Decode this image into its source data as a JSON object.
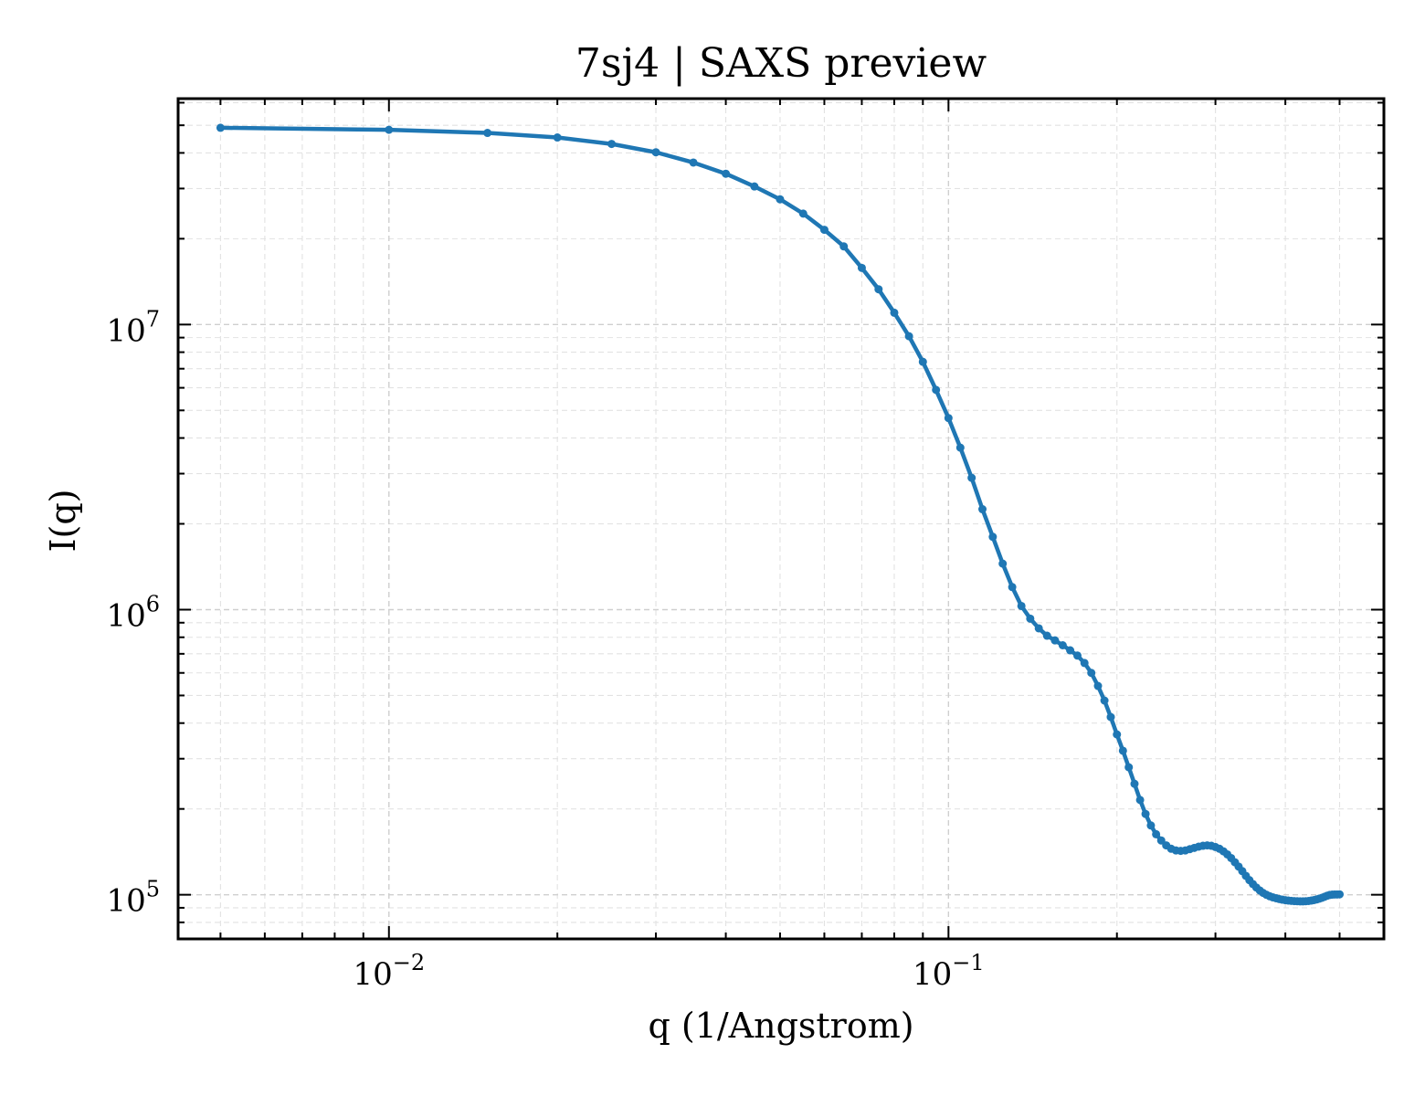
{
  "chart_data": {
    "type": "line",
    "title": "7sj4 | SAXS preview",
    "xlabel": "q (1/Angstrom)",
    "ylabel": "I(q)",
    "xscale": "log",
    "yscale": "log",
    "xlim": [
      0.0042,
      0.6
    ],
    "ylim": [
      70000,
      62000000
    ],
    "grid": true,
    "legend": "none",
    "x_ticks": [
      {
        "value": 0.01,
        "base": "10",
        "exp": "−2"
      },
      {
        "value": 0.1,
        "base": "10",
        "exp": "−1"
      }
    ],
    "y_ticks": [
      {
        "value": 100000,
        "base": "10",
        "exp": "5"
      },
      {
        "value": 1000000,
        "base": "10",
        "exp": "6"
      },
      {
        "value": 10000000,
        "base": "10",
        "exp": "7"
      }
    ],
    "series": [
      {
        "color": "#1f77b4",
        "marker": "dot",
        "x": [
          0.005,
          0.01,
          0.015,
          0.02,
          0.025,
          0.03,
          0.035,
          0.04,
          0.045,
          0.05,
          0.055,
          0.06,
          0.065,
          0.07,
          0.075,
          0.08,
          0.085,
          0.09,
          0.095,
          0.1,
          0.105,
          0.11,
          0.115,
          0.12,
          0.125,
          0.13,
          0.135,
          0.14,
          0.145,
          0.15,
          0.155,
          0.16,
          0.165,
          0.17,
          0.175,
          0.18,
          0.185,
          0.19,
          0.195,
          0.2,
          0.205,
          0.21,
          0.215,
          0.22,
          0.225,
          0.23,
          0.235,
          0.24,
          0.245,
          0.25,
          0.255,
          0.26,
          0.265,
          0.27,
          0.275,
          0.28,
          0.285,
          0.29,
          0.295,
          0.3,
          0.305,
          0.31,
          0.315,
          0.32,
          0.325,
          0.33,
          0.335,
          0.34,
          0.345,
          0.35,
          0.355,
          0.36,
          0.365,
          0.37,
          0.375,
          0.38,
          0.385,
          0.39,
          0.395,
          0.4,
          0.405,
          0.41,
          0.415,
          0.42,
          0.425,
          0.43,
          0.435,
          0.44,
          0.445,
          0.45,
          0.455,
          0.46,
          0.465,
          0.47,
          0.475,
          0.48,
          0.485,
          0.49,
          0.495,
          0.5
        ],
        "y": [
          49000000,
          48200000,
          47000000,
          45300000,
          43000000,
          40200000,
          37000000,
          33800000,
          30500000,
          27500000,
          24500000,
          21500000,
          18800000,
          15800000,
          13300000,
          11000000,
          9100000,
          7400000,
          5900000,
          4700000,
          3700000,
          2900000,
          2250000,
          1800000,
          1450000,
          1200000,
          1030000,
          930000,
          860000,
          810000,
          780000,
          750000,
          720000,
          690000,
          650000,
          600000,
          540000,
          480000,
          420000,
          365000,
          320000,
          280000,
          245000,
          215000,
          192000,
          175000,
          163000,
          155000,
          149000,
          145000,
          143000,
          142500,
          143000,
          144500,
          146000,
          147500,
          148500,
          149000,
          148500,
          147000,
          145000,
          142000,
          138500,
          134500,
          130000,
          125500,
          121000,
          116500,
          112500,
          109000,
          106000,
          103500,
          101500,
          100000,
          98800,
          97900,
          97200,
          96600,
          96100,
          95700,
          95400,
          95200,
          95000,
          94900,
          94800,
          94800,
          94900,
          95100,
          95400,
          95800,
          96300,
          96900,
          97600,
          98400,
          99200,
          99800,
          100100,
          100200,
          100200,
          100300
        ]
      }
    ]
  }
}
